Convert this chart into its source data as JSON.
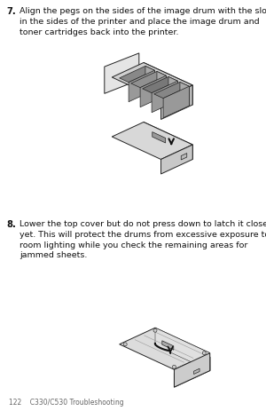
{
  "bg_color": "#ffffff",
  "step7_number": "7.",
  "step7_text": "Align the pegs on the sides of the image drum with the slots\nin the sides of the printer and place the image drum and\ntoner cartridges back into the printer.",
  "step8_number": "8.",
  "step8_text": "Lower the top cover but do not press down to latch it closed\nyet. This will protect the drums from excessive exposure to\nroom lighting while you check the remaining areas for\njammed sheets.",
  "footer_text": "122    C330/C530 Troubleshooting",
  "font_size_body": 6.8,
  "font_size_number": 7.2,
  "text_color": "#111111",
  "figsize": [
    3.0,
    4.64
  ],
  "dpi": 100
}
